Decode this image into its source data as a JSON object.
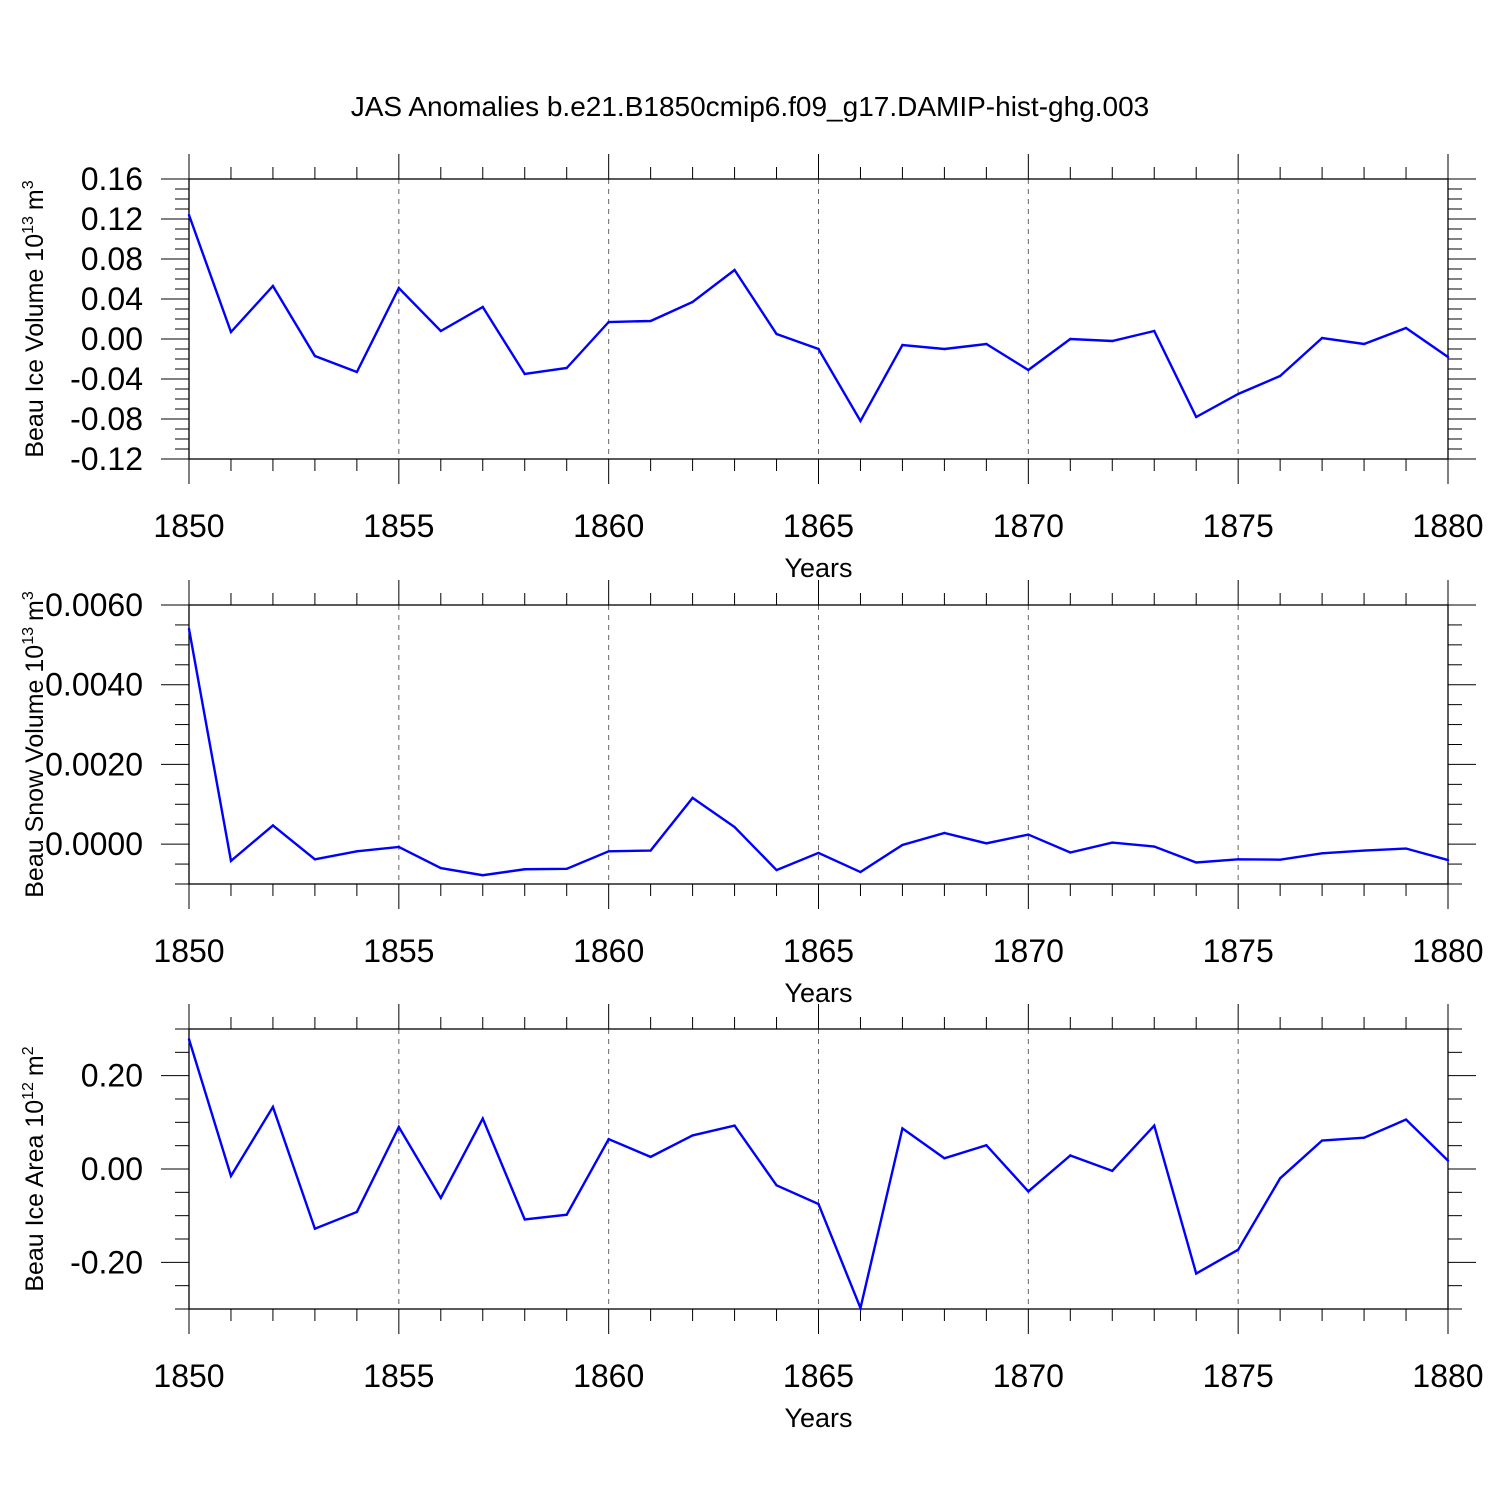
{
  "title": "JAS Anomalies b.e21.B1850cmip6.f09_g17.DAMIP-hist-ghg.003",
  "line_color": "#0000ff",
  "chart_data": [
    {
      "type": "line",
      "ylabel": "Beau Ice Volume 10",
      "ylabel_exp": "13",
      "ylabel_unit": "m",
      "ylabel_unit_exp": "3",
      "xlabel": "Years",
      "xlim": [
        1850,
        1880
      ],
      "ylim": [
        -0.12,
        0.16
      ],
      "xticks": [
        1850,
        1855,
        1860,
        1865,
        1870,
        1875,
        1880
      ],
      "yticks": [
        -0.12,
        -0.08,
        -0.04,
        0.0,
        0.04,
        0.08,
        0.12,
        0.16
      ],
      "ytick_labels": [
        "-0.12",
        "-0.08",
        "-0.04",
        "0.00",
        "0.04",
        "0.08",
        "0.12",
        "0.16"
      ],
      "grid": "dashed vertical at major x ticks",
      "x": [
        1850,
        1851,
        1852,
        1853,
        1854,
        1855,
        1856,
        1857,
        1858,
        1859,
        1860,
        1861,
        1862,
        1863,
        1864,
        1865,
        1866,
        1867,
        1868,
        1869,
        1870,
        1871,
        1872,
        1873,
        1874,
        1875,
        1876,
        1877,
        1878,
        1879,
        1880
      ],
      "values": [
        0.124,
        0.007,
        0.053,
        -0.017,
        -0.033,
        0.051,
        0.008,
        0.032,
        -0.035,
        -0.029,
        0.017,
        0.018,
        0.037,
        0.069,
        0.005,
        -0.01,
        -0.082,
        -0.006,
        -0.01,
        -0.005,
        -0.031,
        0.0,
        -0.002,
        0.008,
        -0.078,
        -0.055,
        -0.037,
        0.001,
        -0.005,
        0.011,
        -0.018
      ]
    },
    {
      "type": "line",
      "ylabel": "Beau Snow Volume 10",
      "ylabel_exp": "13",
      "ylabel_unit": "m",
      "ylabel_unit_exp": "3",
      "xlabel": "Years",
      "xlim": [
        1850,
        1880
      ],
      "ylim": [
        -0.001,
        0.006
      ],
      "xticks": [
        1850,
        1855,
        1860,
        1865,
        1870,
        1875,
        1880
      ],
      "yticks": [
        0.0,
        0.002,
        0.004,
        0.006
      ],
      "ytick_labels": [
        "0.0000",
        "0.0020",
        "0.0040",
        "0.0060"
      ],
      "grid": "dashed vertical at major x ticks",
      "x": [
        1850,
        1851,
        1852,
        1853,
        1854,
        1855,
        1856,
        1857,
        1858,
        1859,
        1860,
        1861,
        1862,
        1863,
        1864,
        1865,
        1866,
        1867,
        1868,
        1869,
        1870,
        1871,
        1872,
        1873,
        1874,
        1875,
        1876,
        1877,
        1878,
        1879,
        1880
      ],
      "values": [
        0.0054,
        -0.00042,
        0.00047,
        -0.00038,
        -0.00018,
        -7e-05,
        -0.0006,
        -0.00078,
        -0.00063,
        -0.00062,
        -0.00018,
        -0.00016,
        0.00116,
        0.00043,
        -0.00065,
        -0.00022,
        -0.0007,
        -2e-05,
        0.00028,
        2e-05,
        0.00024,
        -0.00021,
        4e-05,
        -6e-05,
        -0.00046,
        -0.00038,
        -0.00039,
        -0.00023,
        -0.00016,
        -0.00011,
        -0.0004
      ]
    },
    {
      "type": "line",
      "ylabel": "Beau Ice Area 10",
      "ylabel_exp": "12",
      "ylabel_unit": "m",
      "ylabel_unit_exp": "2",
      "xlabel": "Years",
      "xlim": [
        1850,
        1880
      ],
      "ylim": [
        -0.3,
        0.3
      ],
      "xticks": [
        1850,
        1855,
        1860,
        1865,
        1870,
        1875,
        1880
      ],
      "yticks": [
        -0.2,
        0.0,
        0.2
      ],
      "ytick_labels": [
        "-0.20",
        "0.00",
        "0.20"
      ],
      "grid": "dashed vertical at major x ticks",
      "x": [
        1850,
        1851,
        1852,
        1853,
        1854,
        1855,
        1856,
        1857,
        1858,
        1859,
        1860,
        1861,
        1862,
        1863,
        1864,
        1865,
        1866,
        1867,
        1868,
        1869,
        1870,
        1871,
        1872,
        1873,
        1874,
        1875,
        1876,
        1877,
        1878,
        1879,
        1880
      ],
      "values": [
        0.278,
        -0.015,
        0.133,
        -0.128,
        -0.092,
        0.09,
        -0.062,
        0.108,
        -0.108,
        -0.098,
        0.064,
        0.026,
        0.072,
        0.093,
        -0.035,
        -0.075,
        -0.298,
        0.087,
        0.023,
        0.051,
        -0.048,
        0.029,
        -0.004,
        0.093,
        -0.224,
        -0.173,
        -0.02,
        0.061,
        0.067,
        0.106,
        0.018
      ]
    }
  ]
}
